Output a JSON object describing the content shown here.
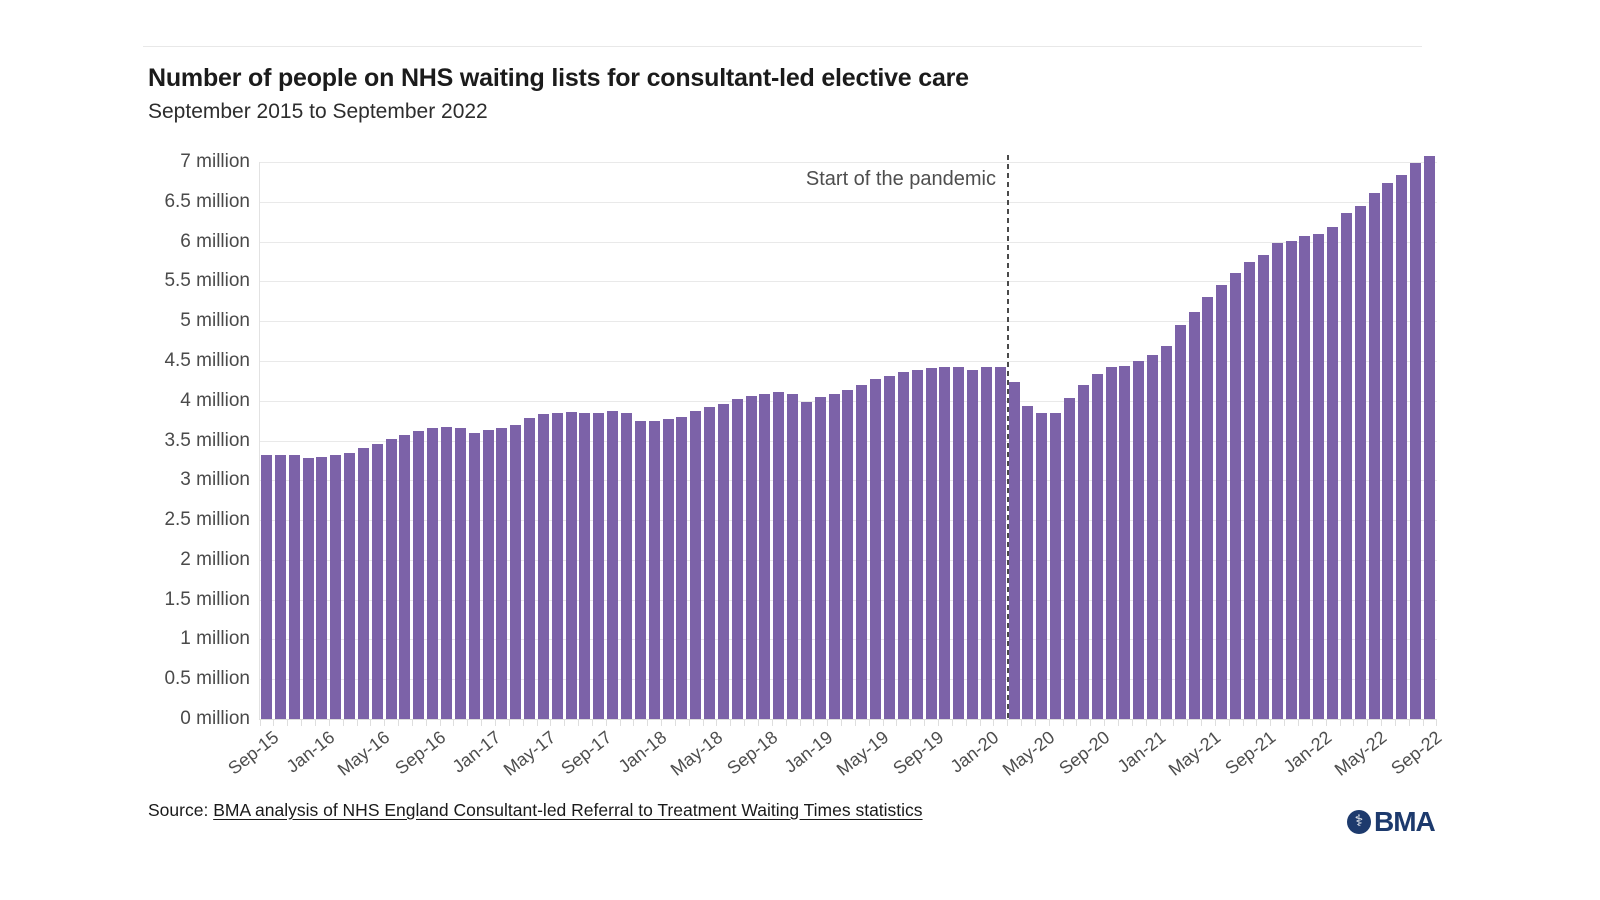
{
  "header": {
    "title": "Number of people on NHS waiting lists for consultant-led elective care",
    "subtitle": "September 2015 to September 2022"
  },
  "chart_data": {
    "type": "bar",
    "title": "Number of people on NHS waiting lists for consultant-led elective care",
    "subtitle": "September 2015 to September 2022",
    "unit": "millions of people",
    "bar_color": "#7c62a8",
    "grid": true,
    "ylim_millions": [
      0,
      7
    ],
    "y_tick_step_millions": 0.5,
    "y_tick_labels": [
      "7 million",
      "6.5 million",
      "6 million",
      "5.5 million",
      "5 million",
      "4.5 million",
      "4 million",
      "3.5 million",
      "3 million",
      "2.5 million",
      "2 million",
      "1.5 million",
      "1 million",
      "0.5 million",
      "0 million"
    ],
    "x_tick_every": 4,
    "x_tick_labels": [
      "Sep-15",
      "Jan-16",
      "May-16",
      "Sep-16",
      "Jan-17",
      "May-17",
      "Sep-17",
      "Jan-18",
      "May-18",
      "Sep-18",
      "Jan-19",
      "May-19",
      "Sep-19",
      "Jan-20",
      "May-20",
      "Sep-20",
      "Jan-21",
      "May-21",
      "Sep-21",
      "Jan-22",
      "May-22",
      "Sep-22"
    ],
    "x": [
      "Sep-15",
      "Oct-15",
      "Nov-15",
      "Dec-15",
      "Jan-16",
      "Feb-16",
      "Mar-16",
      "Apr-16",
      "May-16",
      "Jun-16",
      "Jul-16",
      "Aug-16",
      "Sep-16",
      "Oct-16",
      "Nov-16",
      "Dec-16",
      "Jan-17",
      "Feb-17",
      "Mar-17",
      "Apr-17",
      "May-17",
      "Jun-17",
      "Jul-17",
      "Aug-17",
      "Sep-17",
      "Oct-17",
      "Nov-17",
      "Dec-17",
      "Jan-18",
      "Feb-18",
      "Mar-18",
      "Apr-18",
      "May-18",
      "Jun-18",
      "Jul-18",
      "Aug-18",
      "Sep-18",
      "Oct-18",
      "Nov-18",
      "Dec-18",
      "Jan-19",
      "Feb-19",
      "Mar-19",
      "Apr-19",
      "May-19",
      "Jun-19",
      "Jul-19",
      "Aug-19",
      "Sep-19",
      "Oct-19",
      "Nov-19",
      "Dec-19",
      "Jan-20",
      "Feb-20",
      "Mar-20",
      "Apr-20",
      "May-20",
      "Jun-20",
      "Jul-20",
      "Aug-20",
      "Sep-20",
      "Oct-20",
      "Nov-20",
      "Dec-20",
      "Jan-21",
      "Feb-21",
      "Mar-21",
      "Apr-21",
      "May-21",
      "Jun-21",
      "Jul-21",
      "Aug-21",
      "Sep-21",
      "Oct-21",
      "Nov-21",
      "Dec-21",
      "Jan-22",
      "Feb-22",
      "Mar-22",
      "Apr-22",
      "May-22",
      "Jun-22",
      "Jul-22",
      "Aug-22",
      "Sep-22"
    ],
    "values_millions": [
      3.32,
      3.32,
      3.32,
      3.28,
      3.29,
      3.32,
      3.34,
      3.41,
      3.46,
      3.52,
      3.57,
      3.62,
      3.66,
      3.67,
      3.66,
      3.59,
      3.63,
      3.66,
      3.69,
      3.78,
      3.83,
      3.85,
      3.86,
      3.85,
      3.85,
      3.87,
      3.84,
      3.75,
      3.75,
      3.77,
      3.8,
      3.87,
      3.92,
      3.96,
      4.02,
      4.06,
      4.08,
      4.11,
      4.09,
      3.99,
      4.05,
      4.08,
      4.13,
      4.2,
      4.27,
      4.31,
      4.36,
      4.38,
      4.41,
      4.43,
      4.42,
      4.38,
      4.42,
      4.43,
      4.24,
      3.94,
      3.84,
      3.85,
      4.03,
      4.2,
      4.34,
      4.43,
      4.44,
      4.5,
      4.57,
      4.69,
      4.95,
      5.12,
      5.3,
      5.45,
      5.61,
      5.74,
      5.83,
      5.98,
      6.01,
      6.07,
      6.1,
      6.18,
      6.36,
      6.45,
      6.61,
      6.73,
      6.84,
      6.99,
      7.07
    ],
    "annotation": {
      "text": "Start of the pandemic",
      "month": "Mar-20"
    },
    "legend": null
  },
  "source": {
    "prefix": "Source: ",
    "link_text": "BMA analysis of NHS England Consultant-led Referral to Treatment Waiting Times statistics"
  },
  "logo": {
    "text": "BMA",
    "emblem": "staff-of-aesculapius",
    "color": "#1d3a6d"
  }
}
